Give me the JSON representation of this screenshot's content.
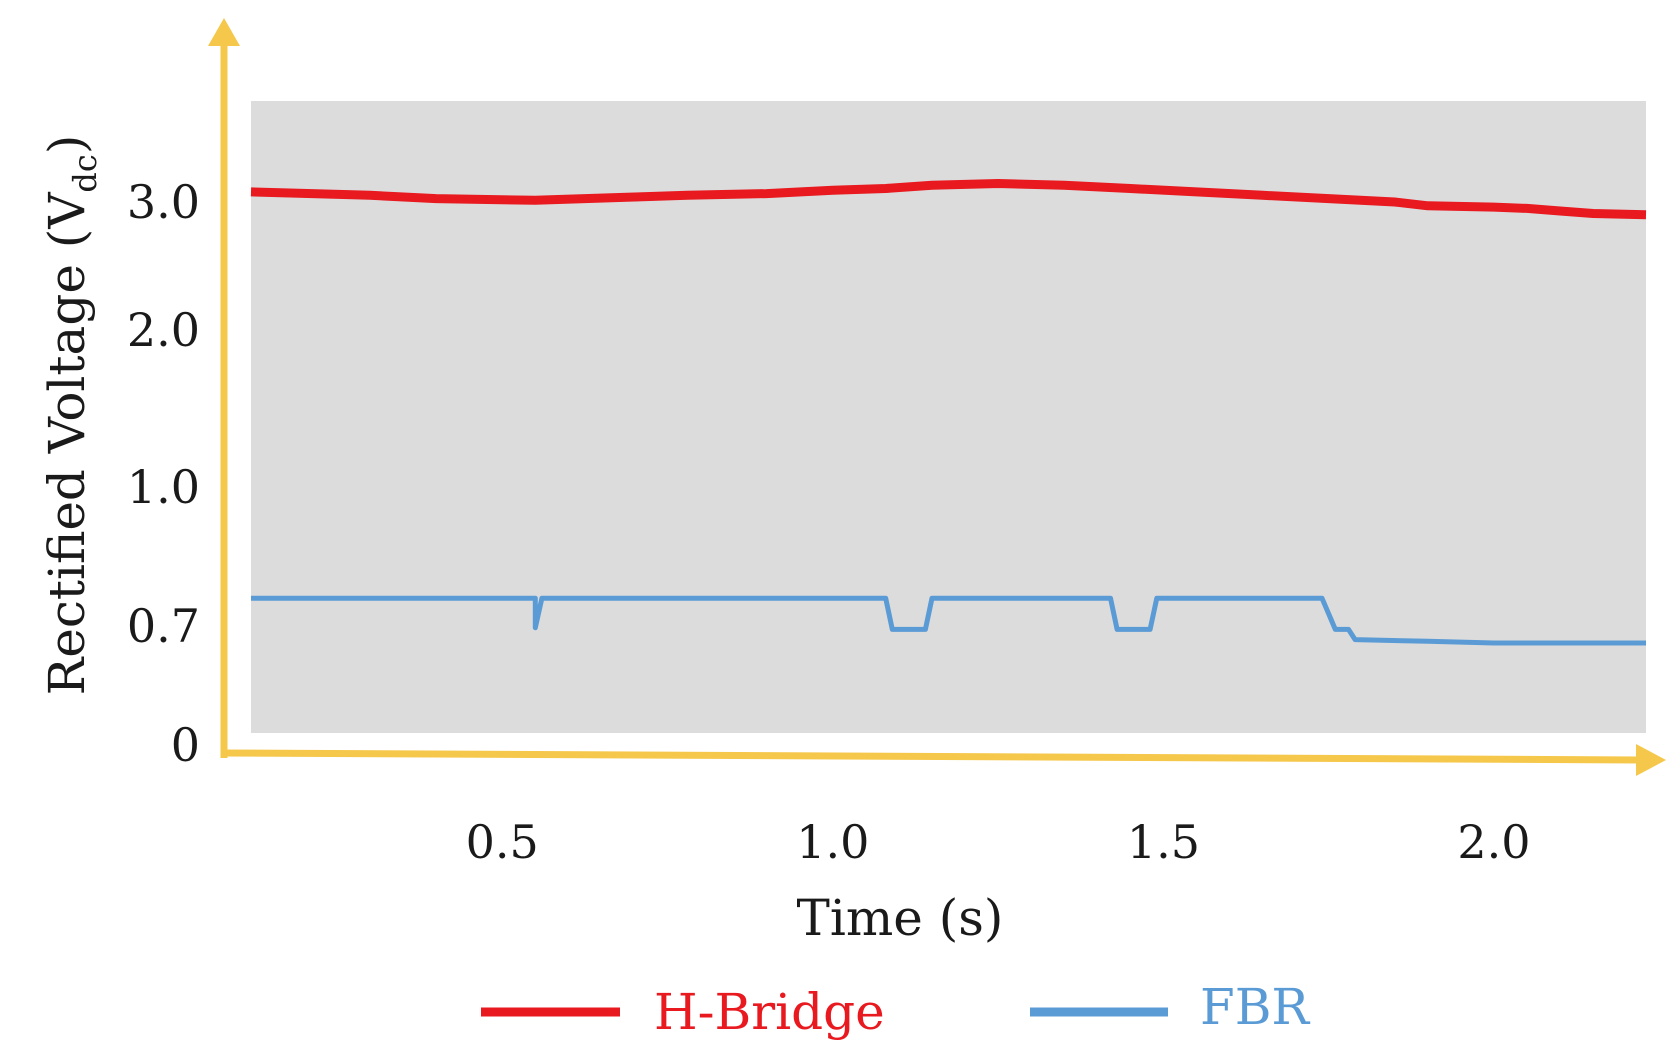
{
  "chart_data": {
    "type": "line",
    "title": "",
    "xlabel": "Time (s)",
    "ylabel": "Rectified Voltage (V",
    "ylabel_sub": "dc",
    "ylabel_close": ")",
    "xlim": [
      0.12,
      2.23
    ],
    "ylim": [
      0,
      3.6
    ],
    "x_ticks": [
      "0.5",
      "1.0",
      "1.5",
      "2.0"
    ],
    "y_ticks": [
      "0",
      "0.7",
      "1.0",
      "2.0",
      "3.0"
    ],
    "grid": false,
    "plot_background": "#dcdcdc",
    "axis_color": "#f5c74a",
    "legend_position": "bottom",
    "series": [
      {
        "name": "H-Bridge",
        "color": "#e8191f",
        "points": [
          [
            0.12,
            3.06
          ],
          [
            0.3,
            3.04
          ],
          [
            0.4,
            3.02
          ],
          [
            0.55,
            3.01
          ],
          [
            0.7,
            3.03
          ],
          [
            0.78,
            3.04
          ],
          [
            0.9,
            3.05
          ],
          [
            1.0,
            3.07
          ],
          [
            1.08,
            3.08
          ],
          [
            1.15,
            3.1
          ],
          [
            1.25,
            3.11
          ],
          [
            1.35,
            3.1
          ],
          [
            1.45,
            3.08
          ],
          [
            1.55,
            3.06
          ],
          [
            1.65,
            3.04
          ],
          [
            1.75,
            3.02
          ],
          [
            1.85,
            3.0
          ],
          [
            1.9,
            2.97
          ],
          [
            2.0,
            2.96
          ],
          [
            2.05,
            2.95
          ],
          [
            2.1,
            2.93
          ],
          [
            2.15,
            2.91
          ],
          [
            2.23,
            2.9
          ]
        ]
      },
      {
        "name": "FBR",
        "color": "#5b9bd5",
        "points": [
          [
            0.12,
            0.76
          ],
          [
            0.55,
            0.76
          ],
          [
            0.55,
            0.69
          ],
          [
            0.56,
            0.76
          ],
          [
            1.08,
            0.76
          ],
          [
            1.09,
            0.68
          ],
          [
            1.14,
            0.68
          ],
          [
            1.15,
            0.76
          ],
          [
            1.42,
            0.76
          ],
          [
            1.43,
            0.68
          ],
          [
            1.48,
            0.68
          ],
          [
            1.49,
            0.76
          ],
          [
            1.74,
            0.76
          ],
          [
            1.76,
            0.68
          ],
          [
            1.78,
            0.68
          ],
          [
            1.79,
            0.62
          ],
          [
            1.9,
            0.61
          ],
          [
            2.0,
            0.6
          ],
          [
            2.1,
            0.6
          ],
          [
            2.23,
            0.6
          ]
        ]
      }
    ]
  }
}
